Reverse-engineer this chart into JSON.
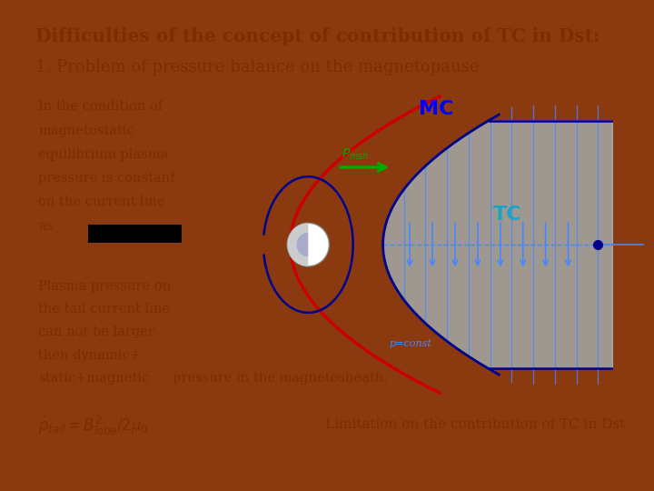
{
  "title_line1": "Difficulties of the concept of contribution of TC in Dst:",
  "title_line2": "1. Problem of pressure balance on the magnetopause",
  "bg_color": "#F5C842",
  "border_color": "#8B3A10",
  "text_color": "#7B2D00",
  "left_text1": "In the condition of\nmagnetostatic\nequilibrium plasma\npressure is constant\non the current line\nas",
  "left_text2": "Plasma pressure on\nthe tail current line\ncan not be larger\nthen dynamic+\nstatic+magnetic",
  "bottom_text": "pressure in the magnetosheath.",
  "arrow_text": "Limitation on the contribution of TC in Dst",
  "diagram_bg": "#FFFFFF",
  "tc_fill_color": "#ADD8E6",
  "tc_line_color": "#4488FF",
  "dark_blue": "#00008B",
  "mc_color": "#0000FF",
  "tc_label_color": "#00AACC",
  "red_color": "#CC0000",
  "green_color": "#00AA00"
}
